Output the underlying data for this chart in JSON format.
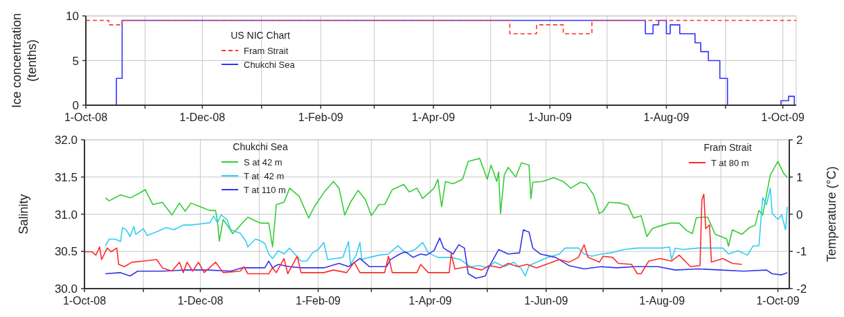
{
  "chart_data": [
    {
      "type": "step",
      "ylabel": "Ice concentration (tenths)",
      "legend_title": "US NIC Chart",
      "legend": "top left",
      "grid": true,
      "xlim": [
        "2008-10-01",
        "2009-10-08"
      ],
      "ylim": [
        0,
        10
      ],
      "yticks": [
        0,
        5,
        10
      ],
      "xticks": [
        {
          "value": "2008-10-01",
          "label": "1-Oct-08"
        },
        {
          "value": "2008-11-01",
          "label": null
        },
        {
          "value": "2008-12-01",
          "label": "1-Dec-08"
        },
        {
          "value": "2009-01-01",
          "label": null
        },
        {
          "value": "2009-02-01",
          "label": "1-Feb-09"
        },
        {
          "value": "2009-03-01",
          "label": null
        },
        {
          "value": "2009-04-01",
          "label": "1-Apr-09"
        },
        {
          "value": "2009-05-01",
          "label": null
        },
        {
          "value": "2009-06-01",
          "label": "1-Jun-09"
        },
        {
          "value": "2009-07-01",
          "label": null
        },
        {
          "value": "2009-08-01",
          "label": "1-Aug-09"
        },
        {
          "value": "2009-09-01",
          "label": null
        },
        {
          "value": "2009-10-01",
          "label": "1-Oct-09"
        }
      ],
      "series": [
        {
          "name": "Fram Strait",
          "color": "#ff3333",
          "line_style": "dashed",
          "x": [
            "2008-10-01",
            "2008-10-13",
            "2008-10-20",
            "2009-05-11",
            "2009-05-25",
            "2009-06-08",
            "2009-06-23",
            "2009-10-08"
          ],
          "values": [
            9.5,
            9,
            9.5,
            8,
            9,
            8,
            9.5,
            9.5
          ]
        },
        {
          "name": "Chukchi Sea",
          "color": "#3333ff",
          "line_style": "solid",
          "x": [
            "2008-10-01",
            "2008-10-17",
            "2008-10-20",
            "2009-07-21",
            "2009-07-25",
            "2009-07-28",
            "2009-08-01",
            "2009-08-03",
            "2009-08-08",
            "2009-08-16",
            "2009-08-19",
            "2009-08-23",
            "2009-08-29",
            "2009-09-02",
            "2009-09-30",
            "2009-10-04",
            "2009-10-07",
            "2009-10-08"
          ],
          "values": [
            0,
            3,
            9.5,
            8,
            9,
            9.5,
            8,
            9,
            8,
            7,
            6,
            5,
            3,
            0,
            0.5,
            1,
            0,
            0
          ]
        }
      ]
    },
    {
      "type": "line",
      "ylabel": "Salinity",
      "y2label": "Temperature (°C)",
      "legend": "top",
      "grid": true,
      "annotations": [
        "Chukchi Sea",
        "Fram Strait"
      ],
      "xlim": [
        "2008-10-01",
        "2009-10-07"
      ],
      "ylim": [
        30,
        32
      ],
      "y2lim": [
        -2,
        2
      ],
      "yticks": [
        {
          "value": 30,
          "label": "30.0"
        },
        {
          "value": 30.5,
          "label": "30.5"
        },
        {
          "value": 31,
          "label": "31.0"
        },
        {
          "value": 31.5,
          "label": "31.5"
        },
        {
          "value": 32,
          "label": "32.0"
        }
      ],
      "y2ticks": [
        -2,
        -1,
        0,
        1,
        2
      ],
      "xticks": [
        {
          "value": "2008-10-01",
          "label": "1-Oct-08"
        },
        {
          "value": "2008-11-01",
          "label": null
        },
        {
          "value": "2008-12-01",
          "label": "1-Dec-08"
        },
        {
          "value": "2009-01-01",
          "label": null
        },
        {
          "value": "2009-02-01",
          "label": "1-Feb-09"
        },
        {
          "value": "2009-03-01",
          "label": null
        },
        {
          "value": "2009-04-01",
          "label": "1-Apr-09"
        },
        {
          "value": "2009-05-01",
          "label": null
        },
        {
          "value": "2009-06-01",
          "label": "1-Jun-09"
        },
        {
          "value": "2009-07-01",
          "label": null
        },
        {
          "value": "2009-08-01",
          "label": "1-Aug-09"
        },
        {
          "value": "2009-09-01",
          "label": null
        },
        {
          "value": "2009-10-01",
          "label": "1-Oct-09"
        }
      ],
      "series": [
        {
          "name": "S at 42 m",
          "color": "#33cc33",
          "x": [
            "2008-10-12",
            "2008-10-14",
            "2008-10-20",
            "2008-10-25",
            "2008-10-29",
            "2008-11-02",
            "2008-11-06",
            "2008-11-11",
            "2008-11-16",
            "2008-11-20",
            "2008-11-23",
            "2008-11-26",
            "2008-12-01",
            "2008-12-06",
            "2008-12-09",
            "2008-12-10",
            "2008-12-11",
            "2008-12-13",
            "2008-12-16",
            "2008-12-18",
            "2008-12-21",
            "2008-12-23",
            "2008-12-26",
            "2008-12-30",
            "2009-01-02",
            "2009-01-06",
            "2009-01-08",
            "2009-01-10",
            "2009-01-14",
            "2009-01-17",
            "2009-01-22",
            "2009-01-27",
            "2009-01-30",
            "2009-02-04",
            "2009-02-09",
            "2009-02-12",
            "2009-02-15",
            "2009-02-18",
            "2009-02-22",
            "2009-02-26",
            "2009-03-01",
            "2009-03-05",
            "2009-03-08",
            "2009-03-12",
            "2009-03-18",
            "2009-03-21",
            "2009-03-25",
            "2009-03-28",
            "2009-04-03",
            "2009-04-05",
            "2009-04-07",
            "2009-04-09",
            "2009-04-13",
            "2009-04-18",
            "2009-04-21",
            "2009-04-27",
            "2009-05-01",
            "2009-05-03",
            "2009-05-06",
            "2009-05-07",
            "2009-05-08",
            "2009-05-10",
            "2009-05-12",
            "2009-05-16",
            "2009-05-19",
            "2009-05-23",
            "2009-05-24",
            "2009-05-25",
            "2009-05-30",
            "2009-06-05",
            "2009-06-10",
            "2009-06-14",
            "2009-06-19",
            "2009-06-22",
            "2009-06-26",
            "2009-06-29",
            "2009-07-01",
            "2009-07-04",
            "2009-07-10",
            "2009-07-14",
            "2009-07-17",
            "2009-07-21",
            "2009-07-24",
            "2009-07-27",
            "2009-08-01",
            "2009-08-05",
            "2009-08-10",
            "2009-08-14",
            "2009-08-17",
            "2009-08-19",
            "2009-08-22",
            "2009-08-25",
            "2009-08-29",
            "2009-09-04",
            "2009-09-05",
            "2009-09-07",
            "2009-09-12",
            "2009-09-16",
            "2009-09-19",
            "2009-09-21",
            "2009-09-23",
            "2009-09-25",
            "2009-09-27",
            "2009-10-01",
            "2009-10-04",
            "2009-10-06"
          ],
          "values": [
            31.22,
            31.18,
            31.26,
            31.22,
            31.27,
            31.33,
            31.13,
            31.16,
            30.99,
            31.15,
            31.04,
            31.15,
            31.1,
            31.05,
            31.05,
            30.91,
            30.64,
            30.93,
            30.82,
            30.74,
            30.82,
            30.88,
            30.96,
            30.91,
            30.88,
            30.88,
            30.56,
            31.13,
            31.16,
            31.35,
            31.24,
            30.95,
            31.1,
            31.29,
            31.44,
            31.35,
            30.99,
            31.16,
            31.32,
            31.19,
            30.98,
            31.13,
            31.13,
            31.33,
            31.4,
            31.3,
            31.35,
            31.21,
            31.35,
            31.47,
            31.1,
            31.44,
            31.41,
            31.47,
            31.71,
            31.75,
            31.47,
            31.66,
            31.44,
            31.57,
            31.01,
            31.53,
            31.63,
            31.5,
            31.69,
            31.66,
            31.21,
            31.43,
            31.44,
            31.49,
            31.44,
            31.35,
            31.43,
            31.41,
            31.26,
            31.01,
            31.04,
            31.16,
            31.15,
            31.12,
            30.95,
            30.98,
            30.7,
            30.81,
            30.85,
            30.88,
            30.88,
            30.78,
            30.74,
            30.95,
            30.96,
            30.96,
            30.73,
            30.67,
            30.57,
            30.79,
            30.73,
            30.82,
            30.85,
            31.05,
            30.99,
            31.26,
            31.53,
            31.71,
            31.55,
            31.49
          ]
        },
        {
          "name": "T at  42 m",
          "color": "#33ccf5",
          "axis": "y2",
          "x": [
            "2008-10-12",
            "2008-10-14",
            "2008-10-17",
            "2008-10-20",
            "2008-10-21",
            "2008-10-23",
            "2008-10-25",
            "2008-10-27",
            "2008-10-28",
            "2008-11-01",
            "2008-11-03",
            "2008-11-09",
            "2008-11-13",
            "2008-11-17",
            "2008-11-22",
            "2008-11-26",
            "2008-12-01",
            "2008-12-06",
            "2008-12-08",
            "2008-12-10",
            "2008-12-12",
            "2008-12-15",
            "2008-12-17",
            "2008-12-22",
            "2008-12-25",
            "2008-12-26",
            "2008-12-30",
            "2009-01-01",
            "2009-01-04",
            "2009-01-06",
            "2009-01-08",
            "2009-01-11",
            "2009-01-14",
            "2009-01-17",
            "2009-01-23",
            "2009-01-26",
            "2009-01-29",
            "2009-02-01",
            "2009-02-04",
            "2009-02-06",
            "2009-02-10",
            "2009-02-14",
            "2009-02-17",
            "2009-02-18",
            "2009-02-21",
            "2009-02-23",
            "2009-02-24",
            "2009-02-28",
            "2009-03-05",
            "2009-03-10",
            "2009-03-15",
            "2009-03-19",
            "2009-03-24",
            "2009-03-28",
            "2009-03-31",
            "2009-04-05",
            "2009-04-12",
            "2009-04-17",
            "2009-04-22",
            "2009-04-27",
            "2009-05-01",
            "2009-05-05",
            "2009-05-10",
            "2009-05-15",
            "2009-05-19",
            "2009-05-21",
            "2009-05-23",
            "2009-05-27",
            "2009-06-02",
            "2009-06-08",
            "2009-06-11",
            "2009-06-14",
            "2009-06-18",
            "2009-06-21",
            "2009-06-25",
            "2009-06-30",
            "2009-07-05",
            "2009-07-12",
            "2009-07-19",
            "2009-07-26",
            "2009-08-01",
            "2009-08-05",
            "2009-08-06",
            "2009-08-08",
            "2009-08-12",
            "2009-08-20",
            "2009-08-27",
            "2009-09-02",
            "2009-09-05",
            "2009-09-10",
            "2009-09-15",
            "2009-09-18",
            "2009-09-21",
            "2009-09-23",
            "2009-09-25",
            "2009-09-27",
            "2009-09-28",
            "2009-10-01",
            "2009-10-03",
            "2009-10-05",
            "2009-10-06"
          ],
          "values": [
            -0.85,
            -0.67,
            -0.67,
            -0.73,
            -0.36,
            -0.42,
            -0.6,
            -0.33,
            -0.54,
            -0.39,
            -0.57,
            -0.45,
            -0.36,
            -0.42,
            -0.29,
            -0.29,
            -0.26,
            -0.23,
            -0.05,
            -0.23,
            -0.02,
            -0.14,
            -0.42,
            -0.51,
            -0.73,
            -0.88,
            -0.67,
            -0.7,
            -0.79,
            -1.07,
            -1.19,
            -0.98,
            -1.07,
            -0.91,
            -1.26,
            -1.26,
            -1.04,
            -0.95,
            -0.76,
            -1.22,
            -1.19,
            -1.16,
            -0.73,
            -1.35,
            -1.1,
            -0.76,
            -1.22,
            -1.16,
            -1.1,
            -1.07,
            -0.85,
            -1.04,
            -0.95,
            -0.76,
            -1.04,
            -1.16,
            -1.16,
            -1.22,
            -1.41,
            -1.38,
            -1.44,
            -1.29,
            -1.41,
            -1.29,
            -1.47,
            -1.66,
            -1.38,
            -1.29,
            -1.16,
            -1.07,
            -0.91,
            -0.91,
            -0.91,
            -1.07,
            -1.13,
            -1.07,
            -1.04,
            -0.95,
            -0.91,
            -0.91,
            -0.91,
            -0.88,
            -1.22,
            -0.91,
            -0.95,
            -0.91,
            -0.91,
            -0.91,
            -1.07,
            -0.98,
            -1.1,
            -0.85,
            -0.85,
            0.45,
            0.26,
            0.7,
            0.02,
            -0.14,
            -0.02,
            -0.42,
            0.2
          ]
        },
        {
          "name": "T at 110 m",
          "color": "#3333ee",
          "axis": "y2",
          "x": [
            "2008-10-12",
            "2008-10-20",
            "2008-10-25",
            "2008-10-29",
            "2008-11-11",
            "2008-11-23",
            "2008-12-05",
            "2008-12-17",
            "2008-12-23",
            "2009-01-04",
            "2009-01-06",
            "2009-01-08",
            "2009-01-11",
            "2009-01-17",
            "2009-01-23",
            "2009-02-04",
            "2009-02-12",
            "2009-02-17",
            "2009-02-23",
            "2009-02-28",
            "2009-03-09",
            "2009-03-11",
            "2009-03-16",
            "2009-03-19",
            "2009-03-23",
            "2009-03-27",
            "2009-03-30",
            "2009-04-03",
            "2009-04-06",
            "2009-04-08",
            "2009-04-13",
            "2009-04-16",
            "2009-04-19",
            "2009-04-21",
            "2009-04-25",
            "2009-04-30",
            "2009-05-02",
            "2009-05-07",
            "2009-05-12",
            "2009-05-18",
            "2009-05-20",
            "2009-05-23",
            "2009-05-25",
            "2009-05-29",
            "2009-06-06",
            "2009-06-13",
            "2009-06-21",
            "2009-06-30",
            "2009-07-08",
            "2009-07-18",
            "2009-07-30",
            "2009-08-08",
            "2009-08-20",
            "2009-09-01",
            "2009-09-13",
            "2009-09-25",
            "2009-09-28",
            "2009-10-03",
            "2009-10-06"
          ],
          "values": [
            -1.6,
            -1.57,
            -1.66,
            -1.53,
            -1.53,
            -1.5,
            -1.5,
            -1.53,
            -1.44,
            -1.44,
            -1.26,
            -1.44,
            -1.35,
            -1.41,
            -1.44,
            -1.44,
            -1.32,
            -1.41,
            -1.19,
            -1.41,
            -1.41,
            -1.22,
            -1.07,
            -1.01,
            -1.16,
            -1.07,
            -1.1,
            -0.98,
            -0.64,
            -0.91,
            -1.07,
            -0.82,
            -0.91,
            -1.6,
            -1.72,
            -1.66,
            -1.41,
            -0.95,
            -1.07,
            -1.04,
            -0.42,
            -0.48,
            -0.91,
            -1.07,
            -1.16,
            -1.38,
            -1.47,
            -1.41,
            -1.44,
            -1.41,
            -1.41,
            -1.5,
            -1.47,
            -1.5,
            -1.53,
            -1.5,
            -1.6,
            -1.63,
            -1.57
          ]
        },
        {
          "name": "T at 80 m",
          "color": "#ff2a2a",
          "axis": "y2",
          "x": [
            "2008-10-01",
            "2008-10-05",
            "2008-10-07",
            "2008-10-09",
            "2008-10-10",
            "2008-10-13",
            "2008-10-15",
            "2008-10-18",
            "2008-10-19",
            "2008-10-22",
            "2008-10-26",
            "2008-11-01",
            "2008-11-08",
            "2008-11-11",
            "2008-11-16",
            "2008-11-20",
            "2008-11-22",
            "2008-11-24",
            "2008-11-27",
            "2008-11-30",
            "2008-12-03",
            "2008-12-09",
            "2008-12-13",
            "2008-12-22",
            "2008-12-24",
            "2008-12-26",
            "2009-01-06",
            "2009-01-08",
            "2009-01-10",
            "2009-01-14",
            "2009-01-16",
            "2009-01-21",
            "2009-01-23",
            "2009-02-04",
            "2009-02-09",
            "2009-02-16",
            "2009-02-20",
            "2009-02-23",
            "2009-03-08",
            "2009-03-10",
            "2009-03-12",
            "2009-03-25",
            "2009-03-27",
            "2009-03-31",
            "2009-04-11",
            "2009-04-12",
            "2009-04-14",
            "2009-04-21",
            "2009-04-28",
            "2009-05-02",
            "2009-05-08",
            "2009-05-12",
            "2009-05-17",
            "2009-05-22",
            "2009-05-27",
            "2009-06-01",
            "2009-06-08",
            "2009-06-13",
            "2009-06-18",
            "2009-06-21",
            "2009-06-23",
            "2009-06-26",
            "2009-06-29",
            "2009-07-01",
            "2009-07-06",
            "2009-07-09",
            "2009-07-16",
            "2009-07-19",
            "2009-07-21",
            "2009-07-25",
            "2009-07-31",
            "2009-08-06",
            "2009-08-10",
            "2009-08-16",
            "2009-08-21",
            "2009-08-22",
            "2009-08-23",
            "2009-08-24",
            "2009-08-26",
            "2009-08-27",
            "2009-09-02",
            "2009-09-07",
            "2009-09-12"
          ],
          "values": [
            -1.01,
            -1.01,
            -1.1,
            -0.88,
            -1.22,
            -0.91,
            -1.01,
            -0.91,
            -1.35,
            -1.41,
            -1.29,
            -1.26,
            -1.22,
            -1.44,
            -1.53,
            -1.29,
            -1.57,
            -1.29,
            -1.53,
            -1.29,
            -1.57,
            -1.29,
            -1.57,
            -1.53,
            -1.41,
            -1.6,
            -1.6,
            -1.44,
            -1.57,
            -1.19,
            -1.6,
            -1.13,
            -1.57,
            -1.57,
            -1.5,
            -1.57,
            -1.29,
            -1.57,
            -1.57,
            -1.13,
            -1.57,
            -1.57,
            -1.35,
            -1.57,
            -1.57,
            -1.07,
            -1.47,
            -1.41,
            -1.5,
            -1.38,
            -1.44,
            -1.32,
            -1.41,
            -1.35,
            -1.44,
            -1.35,
            -1.22,
            -1.29,
            -1.16,
            -0.82,
            -1.16,
            -1.22,
            -1.29,
            -1.13,
            -1.16,
            -1.32,
            -1.35,
            -1.6,
            -1.6,
            -1.26,
            -1.19,
            -1.26,
            -1.1,
            -1.41,
            -1.38,
            0.39,
            0.54,
            -0.39,
            -0.29,
            -1.29,
            -1.19,
            -1.32,
            -1.35
          ]
        }
      ]
    }
  ]
}
